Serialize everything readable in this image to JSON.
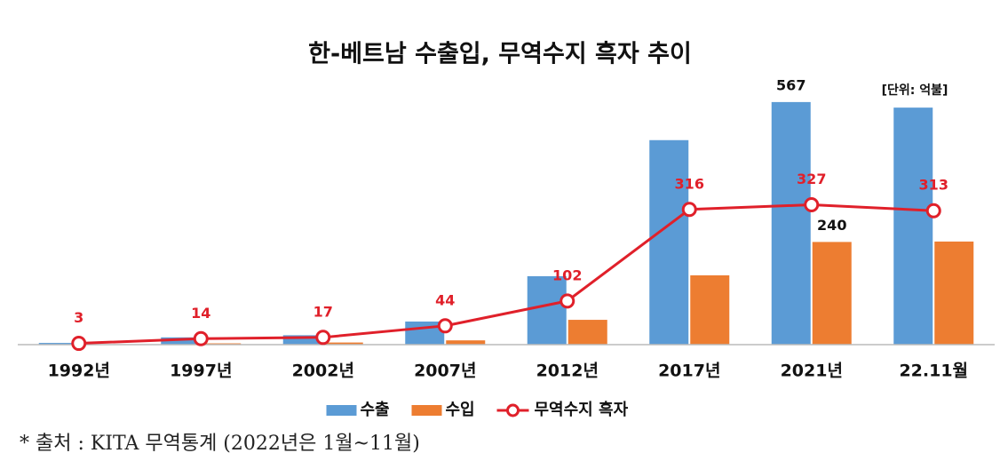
{
  "chart_data": {
    "type": "bar",
    "title": "한-베트남 수출입, 무역수지 흑자 추이",
    "unit_note": "[단위: 억불]",
    "source_note": "* 출처 : KITA 무역통계 (2022년은 1월~11월)",
    "categories": [
      "1992년",
      "1997년",
      "2002년",
      "2007년",
      "2012년",
      "2017년",
      "2021년",
      "22.11월"
    ],
    "series": [
      {
        "name": "수출",
        "type": "bar",
        "color": "#5b9bd5",
        "values": [
          4,
          17,
          22,
          54,
          160,
          478,
          567,
          554
        ],
        "value_labels": [
          null,
          null,
          null,
          null,
          null,
          null,
          "567",
          null
        ]
      },
      {
        "name": "수입",
        "type": "bar",
        "color": "#ed7d31",
        "values": [
          1,
          3,
          5,
          10,
          58,
          162,
          240,
          241
        ],
        "value_labels": [
          null,
          null,
          null,
          null,
          null,
          null,
          "240",
          null
        ]
      },
      {
        "name": "무역수지 흑자",
        "type": "line",
        "color": "#e0202a",
        "values": [
          3,
          14,
          17,
          44,
          102,
          316,
          327,
          313
        ],
        "value_labels": [
          "3",
          "14",
          "17",
          "44",
          "102",
          "316",
          "327",
          "313"
        ]
      }
    ],
    "ylim": [
      0,
      600
    ],
    "legend": "bottom"
  }
}
